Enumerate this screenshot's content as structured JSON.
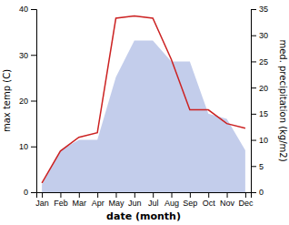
{
  "chart_data": {
    "type": "line",
    "categories": [
      "Jan",
      "Feb",
      "Mar",
      "Apr",
      "May",
      "Jun",
      "Jul",
      "Aug",
      "Sep",
      "Oct",
      "Nov",
      "Dec"
    ],
    "series": [
      {
        "type": "area",
        "axis": "y2",
        "color": "#b8c4e8",
        "values": [
          1.5,
          8,
          10,
          10,
          22,
          29,
          29,
          25,
          25,
          15,
          14,
          8
        ]
      },
      {
        "type": "line",
        "color": "#cc2222",
        "values": [
          2,
          9,
          12,
          13,
          38,
          38.5,
          38,
          29,
          18,
          18,
          15,
          14
        ]
      }
    ],
    "xlabel": "date (month)",
    "ylabel": "max temp (C)",
    "y2label": "med. precipitation (kg/m2)",
    "ylim": [
      0,
      40
    ],
    "yticks": [
      0,
      10,
      20,
      30,
      40
    ],
    "y2lim": [
      0,
      35
    ],
    "y2ticks": [
      0,
      5,
      10,
      15,
      20,
      25,
      30,
      35
    ],
    "grid": false
  }
}
